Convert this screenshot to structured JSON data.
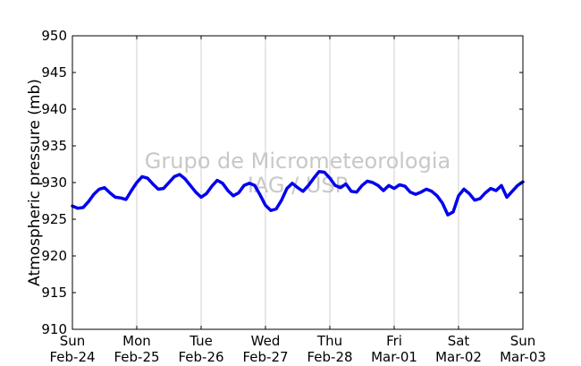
{
  "chart_data": {
    "type": "line",
    "title": "",
    "xlabel": "",
    "ylabel": "Atmospheric pressure (mb)",
    "ylim": [
      910,
      950
    ],
    "yticks": [
      910,
      915,
      920,
      925,
      930,
      935,
      940,
      945,
      950
    ],
    "xlim": [
      "2013-02-24 00:00",
      "2013-03-03 00:00"
    ],
    "xticks": [
      {
        "line1": "Sun",
        "line2": "Feb-24"
      },
      {
        "line1": "Mon",
        "line2": "Feb-25"
      },
      {
        "line1": "Tue",
        "line2": "Feb-26"
      },
      {
        "line1": "Wed",
        "line2": "Feb-27"
      },
      {
        "line1": "Thu",
        "line2": "Feb-28"
      },
      {
        "line1": "Fri",
        "line2": "Mar-01"
      },
      {
        "line1": "Sat",
        "line2": "Mar-02"
      },
      {
        "line1": "Sun",
        "line2": "Mar-03"
      }
    ],
    "grid": "vertical",
    "watermark": {
      "line1": "Grupo de Micrometeorologia",
      "line2": "IAG / USP"
    },
    "series": [
      {
        "color": "#0000ee",
        "points": [
          [
            "2013-02-24 00:00",
            926.8
          ],
          [
            "2013-02-24 02:00",
            926.5
          ],
          [
            "2013-02-24 04:00",
            926.6
          ],
          [
            "2013-02-24 06:00",
            927.4
          ],
          [
            "2013-02-24 08:00",
            928.4
          ],
          [
            "2013-02-24 10:00",
            929.1
          ],
          [
            "2013-02-24 12:00",
            929.3
          ],
          [
            "2013-02-24 14:00",
            928.6
          ],
          [
            "2013-02-24 16:00",
            928.0
          ],
          [
            "2013-02-24 18:00",
            927.9
          ],
          [
            "2013-02-24 20:00",
            927.7
          ],
          [
            "2013-02-24 22:00",
            928.9
          ],
          [
            "2013-02-25 00:00",
            930.0
          ],
          [
            "2013-02-25 02:00",
            930.8
          ],
          [
            "2013-02-25 04:00",
            930.6
          ],
          [
            "2013-02-25 06:00",
            929.8
          ],
          [
            "2013-02-25 08:00",
            929.1
          ],
          [
            "2013-02-25 10:00",
            929.2
          ],
          [
            "2013-02-25 12:00",
            930.0
          ],
          [
            "2013-02-25 14:00",
            930.8
          ],
          [
            "2013-02-25 16:00",
            931.1
          ],
          [
            "2013-02-25 18:00",
            930.5
          ],
          [
            "2013-02-25 20:00",
            929.6
          ],
          [
            "2013-02-25 22:00",
            928.7
          ],
          [
            "2013-02-26 00:00",
            928.0
          ],
          [
            "2013-02-26 02:00",
            928.5
          ],
          [
            "2013-02-26 04:00",
            929.5
          ],
          [
            "2013-02-26 06:00",
            930.3
          ],
          [
            "2013-02-26 08:00",
            929.9
          ],
          [
            "2013-02-26 10:00",
            928.9
          ],
          [
            "2013-02-26 12:00",
            928.2
          ],
          [
            "2013-02-26 14:00",
            928.6
          ],
          [
            "2013-02-26 16:00",
            929.6
          ],
          [
            "2013-02-26 18:00",
            929.9
          ],
          [
            "2013-02-26 20:00",
            929.6
          ],
          [
            "2013-02-26 22:00",
            928.3
          ],
          [
            "2013-02-27 00:00",
            926.9
          ],
          [
            "2013-02-27 02:00",
            926.2
          ],
          [
            "2013-02-27 04:00",
            926.4
          ],
          [
            "2013-02-27 06:00",
            927.6
          ],
          [
            "2013-02-27 08:00",
            929.2
          ],
          [
            "2013-02-27 10:00",
            929.9
          ],
          [
            "2013-02-27 12:00",
            929.3
          ],
          [
            "2013-02-27 14:00",
            928.8
          ],
          [
            "2013-02-27 16:00",
            929.6
          ],
          [
            "2013-02-27 18:00",
            930.6
          ],
          [
            "2013-02-27 20:00",
            931.5
          ],
          [
            "2013-02-27 22:00",
            931.4
          ],
          [
            "2013-02-28 00:00",
            930.6
          ],
          [
            "2013-02-28 02:00",
            929.6
          ],
          [
            "2013-02-28 04:00",
            929.3
          ],
          [
            "2013-02-28 06:00",
            929.8
          ],
          [
            "2013-02-28 08:00",
            928.8
          ],
          [
            "2013-02-28 10:00",
            928.7
          ],
          [
            "2013-02-28 12:00",
            929.6
          ],
          [
            "2013-02-28 14:00",
            930.2
          ],
          [
            "2013-02-28 16:00",
            930.0
          ],
          [
            "2013-02-28 18:00",
            929.6
          ],
          [
            "2013-02-28 20:00",
            928.9
          ],
          [
            "2013-02-28 22:00",
            929.6
          ],
          [
            "2013-03-01 00:00",
            929.2
          ],
          [
            "2013-03-01 02:00",
            929.7
          ],
          [
            "2013-03-01 04:00",
            929.5
          ],
          [
            "2013-03-01 06:00",
            928.7
          ],
          [
            "2013-03-01 08:00",
            928.4
          ],
          [
            "2013-03-01 10:00",
            928.7
          ],
          [
            "2013-03-01 12:00",
            929.1
          ],
          [
            "2013-03-01 14:00",
            928.8
          ],
          [
            "2013-03-01 16:00",
            928.2
          ],
          [
            "2013-03-01 18:00",
            927.2
          ],
          [
            "2013-03-01 20:00",
            925.6
          ],
          [
            "2013-03-01 22:00",
            926.0
          ],
          [
            "2013-03-02 00:00",
            928.2
          ],
          [
            "2013-03-02 02:00",
            929.1
          ],
          [
            "2013-03-02 04:00",
            928.5
          ],
          [
            "2013-03-02 06:00",
            927.6
          ],
          [
            "2013-03-02 08:00",
            927.8
          ],
          [
            "2013-03-02 10:00",
            928.6
          ],
          [
            "2013-03-02 12:00",
            929.2
          ],
          [
            "2013-03-02 14:00",
            928.9
          ],
          [
            "2013-03-02 16:00",
            929.6
          ],
          [
            "2013-03-02 18:00",
            928.0
          ],
          [
            "2013-03-02 20:00",
            928.8
          ],
          [
            "2013-03-02 22:00",
            929.6
          ],
          [
            "2013-03-03 00:00",
            930.1
          ]
        ]
      }
    ]
  }
}
